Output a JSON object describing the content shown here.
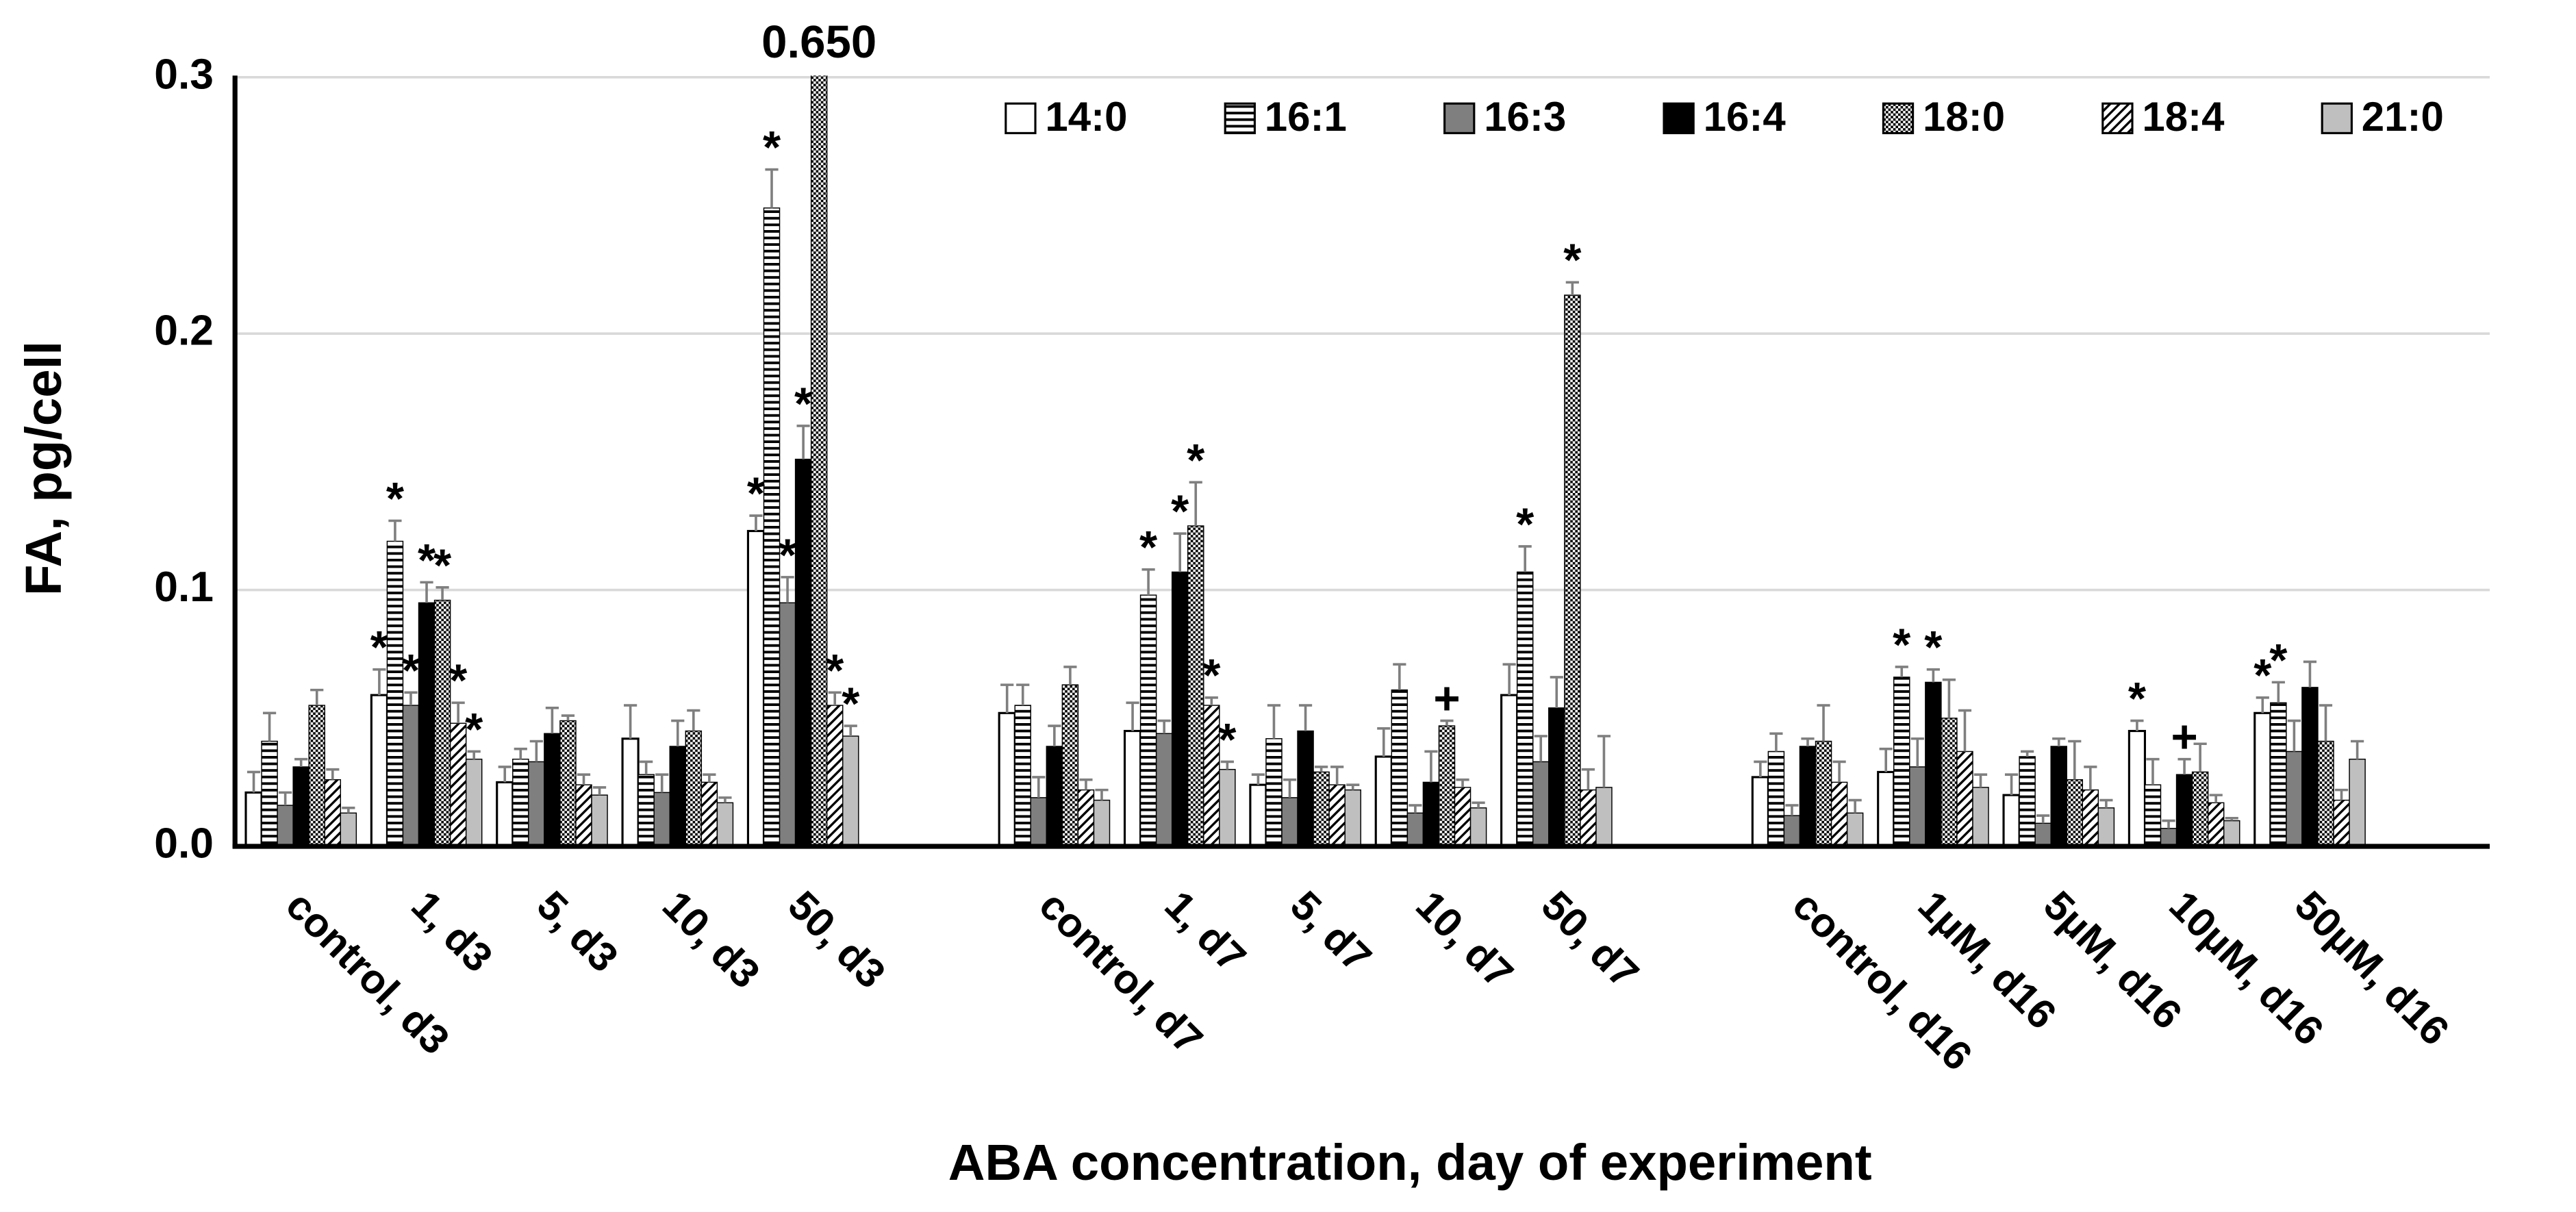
{
  "chart_data": {
    "type": "bar",
    "x_label": "ABA concentration, day of experiment",
    "y_label": "FA, pg/cell",
    "categories": [
      "control, d3",
      "1, d3",
      "5, d3",
      "10, d3",
      "50, d3",
      null,
      "control, d7",
      "1, d7",
      "5, d7",
      "10, d7",
      "50, d7",
      null,
      "control, d16",
      "1µM, d16",
      "5µM, d16",
      "10µM, d16",
      "50µM, d16"
    ],
    "ylim": [
      0,
      0.3
    ],
    "yticks": [
      {
        "value": 0,
        "label": "0.0"
      },
      0.1,
      0.2,
      0.3
    ],
    "grid": true,
    "legend": "top-right",
    "error_color": "#7f7f7f",
    "series": [
      {
        "name": "14:0",
        "color": "#ffffff",
        "pattern": "solid",
        "values": [
          0.021,
          0.059,
          0.025,
          0.042,
          0.123,
          null,
          0.052,
          0.045,
          0.024,
          0.035,
          0.059,
          null,
          0.027,
          0.029,
          0.02,
          0.045,
          0.052
        ],
        "errors": [
          0.008,
          0.01,
          0.006,
          0.013,
          0.006,
          null,
          0.011,
          0.011,
          0.004,
          0.011,
          0.012,
          null,
          0.006,
          0.009,
          0.008,
          0.004,
          0.006
        ],
        "annotations": [
          null,
          "*",
          null,
          null,
          "*",
          null,
          null,
          null,
          null,
          null,
          null,
          null,
          null,
          null,
          null,
          "*",
          "*"
        ]
      },
      {
        "name": "16:1",
        "color": "#000000",
        "pattern": "hlines",
        "values": [
          0.041,
          0.119,
          0.034,
          0.028,
          0.249,
          null,
          0.055,
          0.098,
          0.042,
          0.061,
          0.107,
          null,
          0.037,
          0.066,
          0.035,
          0.024,
          0.056
        ],
        "errors": [
          0.011,
          0.008,
          0.004,
          0.005,
          0.015,
          null,
          0.008,
          0.01,
          0.013,
          0.01,
          0.01,
          null,
          0.007,
          0.004,
          0.002,
          0.01,
          0.008
        ],
        "annotations": [
          null,
          "*",
          null,
          null,
          "*",
          null,
          null,
          "*",
          null,
          null,
          "*",
          null,
          null,
          "*",
          null,
          null,
          "*"
        ]
      },
      {
        "name": "16:3",
        "color": "#7f7f7f",
        "pattern": "solid",
        "values": [
          0.016,
          0.055,
          0.033,
          0.021,
          0.095,
          null,
          0.019,
          0.044,
          0.019,
          0.013,
          0.033,
          null,
          0.012,
          0.031,
          0.009,
          0.007,
          0.037
        ],
        "errors": [
          0.005,
          0.005,
          0.008,
          0.007,
          0.01,
          null,
          0.008,
          0.005,
          0.007,
          0.003,
          0.01,
          null,
          0.004,
          0.011,
          0.003,
          0.003,
          0.012
        ],
        "annotations": [
          null,
          "*",
          null,
          null,
          "*",
          null,
          null,
          null,
          null,
          null,
          null,
          null,
          null,
          null,
          null,
          null,
          null
        ]
      },
      {
        "name": "16:4",
        "color": "#000000",
        "pattern": "solid",
        "values": [
          0.031,
          0.095,
          0.044,
          0.039,
          0.151,
          null,
          0.039,
          0.107,
          0.045,
          0.025,
          0.054,
          null,
          0.039,
          0.064,
          0.039,
          0.028,
          0.062
        ],
        "errors": [
          0.003,
          0.008,
          0.01,
          0.01,
          0.013,
          null,
          0.008,
          0.015,
          0.01,
          0.012,
          0.012,
          null,
          0.003,
          0.005,
          0.003,
          0.006,
          0.01
        ],
        "annotations": [
          null,
          "*",
          null,
          null,
          "*",
          null,
          null,
          "*",
          null,
          null,
          null,
          null,
          null,
          "*",
          null,
          "+",
          null
        ]
      },
      {
        "name": "18:0",
        "color": "#000000",
        "pattern": "checker",
        "values": [
          0.055,
          0.096,
          0.049,
          0.045,
          0.65,
          null,
          0.063,
          0.125,
          0.029,
          0.047,
          0.215,
          null,
          0.041,
          0.05,
          0.026,
          0.029,
          0.041
        ],
        "value_labels": [
          null,
          null,
          null,
          null,
          "0.650",
          null,
          null,
          null,
          null,
          null,
          null,
          null,
          null,
          null,
          null,
          null,
          null
        ],
        "errors": [
          0.006,
          0.005,
          0.002,
          0.008,
          null,
          null,
          0.007,
          0.017,
          0.002,
          0.002,
          0.005,
          null,
          0.014,
          0.015,
          0.015,
          0.011,
          0.014
        ],
        "annotations": [
          null,
          "*",
          null,
          null,
          null,
          null,
          null,
          "*",
          null,
          "+",
          "*",
          null,
          null,
          null,
          null,
          null,
          null
        ]
      },
      {
        "name": "18:4",
        "color": "#000000",
        "pattern": "diag",
        "values": [
          0.026,
          0.048,
          0.024,
          0.025,
          0.055,
          null,
          0.022,
          0.055,
          0.024,
          0.023,
          0.022,
          null,
          0.025,
          0.037,
          0.022,
          0.017,
          0.018
        ],
        "errors": [
          0.004,
          0.008,
          0.004,
          0.003,
          0.005,
          null,
          0.004,
          0.003,
          0.007,
          0.003,
          0.008,
          null,
          0.008,
          0.016,
          0.009,
          0.003,
          0.004
        ],
        "annotations": [
          null,
          "*",
          null,
          null,
          "*",
          null,
          null,
          "*",
          null,
          null,
          null,
          null,
          null,
          null,
          null,
          null,
          null
        ]
      },
      {
        "name": "21:0",
        "color": "#bfbfbf",
        "pattern": "solid",
        "values": [
          0.013,
          0.034,
          0.02,
          0.017,
          0.043,
          null,
          0.018,
          0.03,
          0.022,
          0.015,
          0.023,
          null,
          0.013,
          0.023,
          0.015,
          0.01,
          0.034
        ],
        "errors": [
          0.002,
          0.003,
          0.003,
          0.002,
          0.004,
          null,
          0.004,
          0.003,
          0.002,
          0.002,
          0.02,
          null,
          0.005,
          0.005,
          0.003,
          0.001,
          0.007
        ],
        "annotations": [
          null,
          "*",
          null,
          null,
          "*",
          null,
          null,
          "*",
          null,
          null,
          null,
          null,
          null,
          null,
          null,
          null,
          null
        ]
      }
    ]
  }
}
